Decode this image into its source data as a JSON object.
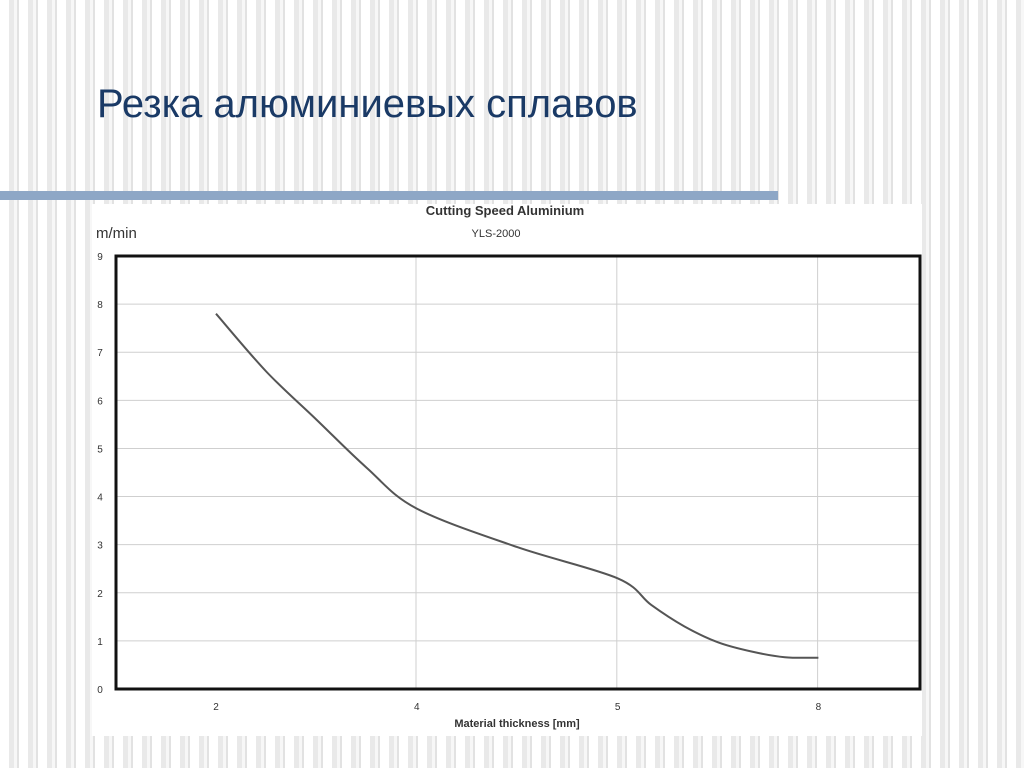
{
  "slide": {
    "title": "Резка алюминиевых сплавов"
  },
  "colors": {
    "title": "#1a3a66",
    "accent_rule": "#8ea7c6",
    "curve": "#555555",
    "grid": "#cfcfcf",
    "frame": "#111111"
  },
  "chart_data": {
    "type": "line",
    "title": "Cutting Speed Aluminium",
    "subtitle": "YLS-2000",
    "xlabel": "Material thickness [mm]",
    "ylabel": "m/min",
    "x_categories": [
      "2",
      "4",
      "5",
      "8"
    ],
    "ylim": [
      0,
      9
    ],
    "y_ticks": [
      "0",
      "1",
      "2",
      "3",
      "4",
      "5",
      "6",
      "7",
      "8",
      "9"
    ],
    "grid": true,
    "series": [
      {
        "x": [
          2,
          2.5,
          3,
          3.5,
          4,
          4.5,
          5,
          5.5,
          6,
          6.5,
          7,
          7.5,
          8
        ],
        "values": [
          7.8,
          6.6,
          5.6,
          4.6,
          3.75,
          2.95,
          2.3,
          1.75,
          1.3,
          0.97,
          0.78,
          0.66,
          0.65
        ]
      }
    ]
  }
}
